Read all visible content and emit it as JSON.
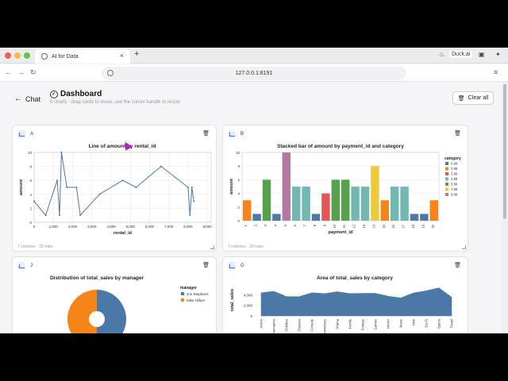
{
  "browser": {
    "tab_title": "AI for Data",
    "tab_close": "×",
    "new_tab": "+",
    "duck_label": "Duck.ai",
    "url": "127.0.0.1:8191",
    "traffic_colors": [
      "#ec5f57",
      "#f4bd4f",
      "#5fc453"
    ],
    "nav": {
      "back": "←",
      "forward": "→",
      "reload": "↻",
      "menu": "≡"
    }
  },
  "app": {
    "back_label": "Chat",
    "title": "Dashboard",
    "subtitle": "5 charts · drag cards to move, use the corner handle to resize",
    "clear_label": "Clear all"
  },
  "cards": [
    {
      "letter": "A",
      "title": "Line of amount by rental_id",
      "foot": "7 columns · 20 rows"
    },
    {
      "letter": "B",
      "title": "Stacked bar of amount by payment_id and category",
      "foot": "7 columns · 20 rows"
    },
    {
      "letter": "J",
      "title": "Distribution of total_sales by manager",
      "foot": ""
    },
    {
      "letter": "G",
      "title": "Area of total_sales by category",
      "foot": ""
    }
  ],
  "chart_data": [
    {
      "type": "line",
      "title": "Line of amount by rental_id",
      "xlabel": "rental_id",
      "ylabel": "amount",
      "xlim": [
        0,
        9200
      ],
      "ylim": [
        0,
        10
      ],
      "xticks": [
        "0",
        "1,000",
        "2,000",
        "3,000",
        "4,000",
        "5,000",
        "6,000",
        "7,000",
        "8,000",
        "9,000"
      ],
      "yticks": [
        "0",
        "2",
        "4",
        "6",
        "8",
        "10"
      ],
      "x": [
        0,
        600,
        1200,
        1320,
        1420,
        1700,
        2200,
        2400,
        3400,
        4600,
        5300,
        6600,
        8000,
        8100,
        8200,
        8300
      ],
      "y": [
        3,
        1,
        6,
        1,
        10,
        5,
        5,
        1,
        4,
        6,
        5,
        8,
        5,
        1,
        5,
        3
      ],
      "color": "#4c78a8",
      "grid": true
    },
    {
      "type": "bar",
      "stacked": true,
      "title": "Stacked bar of amount by payment_id and category",
      "xlabel": "payment_id",
      "ylabel": "amount",
      "ylim": [
        0,
        10
      ],
      "yticks": [
        "0",
        "2",
        "4",
        "6",
        "8",
        "10"
      ],
      "categories": [
        "1",
        "2",
        "3",
        "4",
        "5",
        "6",
        "7",
        "8",
        "9",
        "10",
        "11",
        "12",
        "13",
        "14",
        "15",
        "16",
        "17",
        "18",
        "19",
        "20"
      ],
      "values": [
        2.99,
        0.99,
        5.99,
        0.99,
        9.99,
        4.99,
        4.99,
        0.99,
        3.99,
        5.99,
        5.99,
        4.99,
        4.99,
        7.99,
        2.99,
        4.99,
        4.99,
        0.99,
        0.99,
        2.99
      ],
      "legend_title": "category",
      "legend_placement": "right",
      "legend": [
        {
          "name": "0.99",
          "color": "#4c78a8"
        },
        {
          "name": "2.99",
          "color": "#f58518"
        },
        {
          "name": "3.99",
          "color": "#e45756"
        },
        {
          "name": "4.99",
          "color": "#72b7b2"
        },
        {
          "name": "5.99",
          "color": "#54a24b"
        },
        {
          "name": "7.99",
          "color": "#eeca3b"
        },
        {
          "name": "9.99",
          "color": "#b279a2"
        }
      ]
    },
    {
      "type": "pie",
      "donut": true,
      "title": "Distribution of total_sales by manager",
      "legend_title": "manager",
      "legend_placement": "right",
      "slices": [
        {
          "name": "Jon Stephens",
          "value": 50,
          "color": "#4c78a8"
        },
        {
          "name": "Mike Hillyer",
          "value": 50,
          "color": "#f58518"
        }
      ]
    },
    {
      "type": "area",
      "title": "Area of total_sales by category",
      "ylabel": "total_sales",
      "ylim": [
        0,
        6000
      ],
      "yticks": [
        "0",
        "2,000",
        "4,000"
      ],
      "categories": [
        "Action",
        "Animation",
        "Children",
        "Classics",
        "Comedy",
        "Documentary",
        "Drama",
        "Family",
        "Foreign",
        "Games",
        "Horror",
        "Music",
        "New",
        "Sci-Fi",
        "Sports",
        "Travel"
      ],
      "values": [
        4375,
        4656,
        3655,
        3639,
        4383,
        4217,
        4587,
        4226,
        4270,
        4281,
        3722,
        3418,
        4352,
        4757,
        5315,
        3549
      ],
      "color": "#4c78a8"
    }
  ]
}
